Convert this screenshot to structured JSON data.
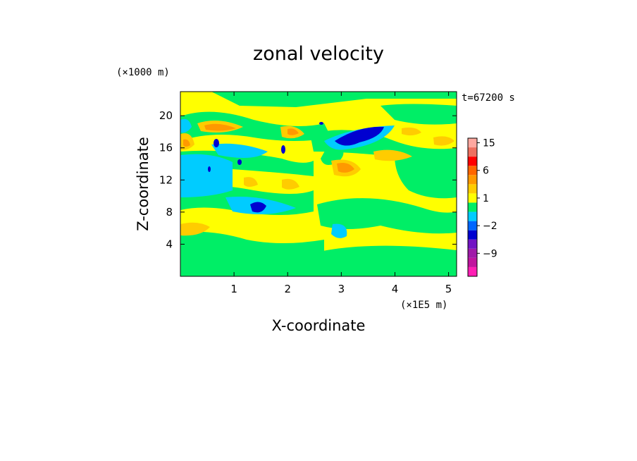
{
  "chart_data": {
    "type": "heatmap",
    "title": "zonal velocity",
    "xlabel": "X-coordinate",
    "ylabel": "Z-coordinate",
    "x_unit": "(×1E5 m)",
    "y_unit": "(×1000 m)",
    "time_label": "t=67200 s",
    "xlim": [
      0,
      5.15
    ],
    "ylim": [
      0,
      23
    ],
    "x_ticks": [
      1,
      2,
      3,
      4,
      5
    ],
    "y_ticks": [
      4,
      8,
      12,
      16,
      20
    ],
    "colorbar": {
      "levels": [
        -15,
        -12,
        -9,
        -6,
        -3,
        -2,
        -1,
        0,
        1,
        2,
        3,
        6,
        9,
        12,
        15,
        18
      ],
      "colors": [
        "#ff1eb4",
        "#c0149e",
        "#a01aa8",
        "#7214c4",
        "#0000d0",
        "#0066ff",
        "#00ccff",
        "#00ee66",
        "#ffff00",
        "#ffcc00",
        "#ff9900",
        "#ff6600",
        "#ff0000",
        "#ee7060",
        "#ffa8a0"
      ],
      "tick_labels": [
        {
          "value": 15,
          "label": "15"
        },
        {
          "value": 6,
          "label": "6"
        },
        {
          "value": 1,
          "label": "1"
        },
        {
          "value": -2,
          "label": "−2"
        },
        {
          "value": -9,
          "label": "−9"
        }
      ]
    },
    "features": [
      {
        "x": 3.4,
        "z": 17.0,
        "u": -5
      },
      {
        "x": 1.5,
        "z": 8.5,
        "u": -5
      },
      {
        "x": 0.7,
        "z": 18.2,
        "u": 4
      },
      {
        "x": 2.9,
        "z": 13.5,
        "u": 3
      },
      {
        "x": 0.2,
        "z": 5.8,
        "u": 2.5
      },
      {
        "x": 1.6,
        "z": 18.5,
        "u": 3
      }
    ]
  }
}
